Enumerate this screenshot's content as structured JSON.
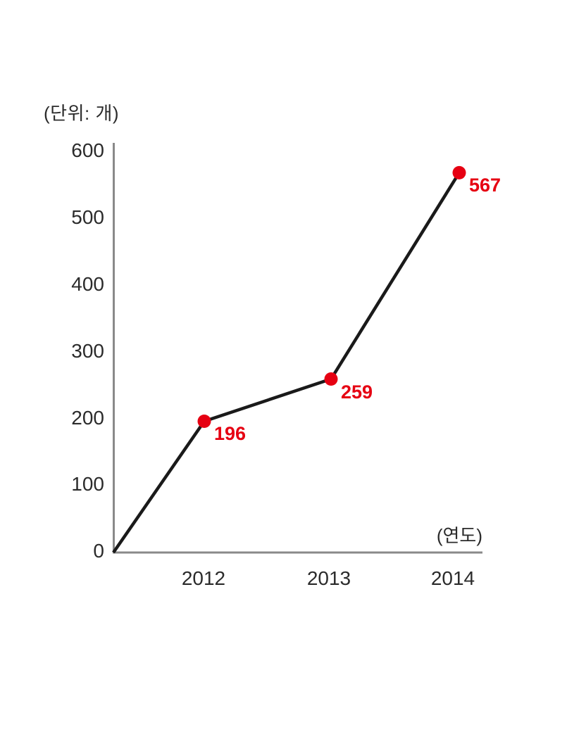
{
  "page": {
    "background": "#ffffff"
  },
  "chart_data": {
    "type": "line",
    "title": "",
    "unit_label": "(단위: 개)",
    "x_axis_label": "(연도)",
    "categories": [
      "2012",
      "2013",
      "2014"
    ],
    "values": [
      196,
      259,
      567
    ],
    "value_labels": [
      "196",
      "259",
      "567"
    ],
    "yticks": [
      "600",
      "500",
      "400",
      "300",
      "200",
      "100",
      "0"
    ],
    "ylim": [
      0,
      600
    ],
    "ytick_step": 100,
    "line_starts_at_origin": true,
    "grid": false,
    "legend": "none",
    "colors": {
      "line": "#1a1a1a",
      "point": "#e60012",
      "value_label": "#e60012",
      "axis": "#8a8a8a",
      "text": "#2b2b2b"
    }
  }
}
